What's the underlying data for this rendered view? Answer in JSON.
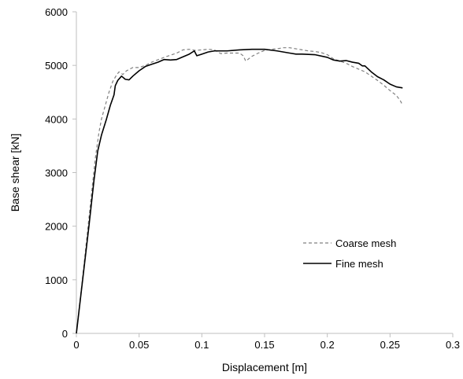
{
  "chart_data": {
    "type": "line",
    "title": "",
    "xlabel": "Displacement [m]",
    "ylabel": "Base shear [kN]",
    "xlim": [
      0,
      0.3
    ],
    "ylim": [
      0,
      6000
    ],
    "x_ticks": [
      0,
      0.05,
      0.1,
      0.15,
      0.2,
      0.25,
      0.3
    ],
    "x_tick_labels": [
      "0",
      "0.05",
      "0.1",
      "0.15",
      "0.2",
      "0.25",
      "0.3"
    ],
    "y_ticks": [
      0,
      1000,
      2000,
      3000,
      4000,
      5000,
      6000
    ],
    "y_tick_labels": [
      "0",
      "1000",
      "2000",
      "3000",
      "4000",
      "5000",
      "6000"
    ],
    "grid": false,
    "legend_position": "center-right",
    "series": [
      {
        "name": "Coarse mesh",
        "style": "dashed",
        "color": "#808080",
        "points": [
          [
            0,
            0
          ],
          [
            0.005,
            1050
          ],
          [
            0.01,
            2150
          ],
          [
            0.015,
            3250
          ],
          [
            0.018,
            3750
          ],
          [
            0.02,
            4000
          ],
          [
            0.023,
            4250
          ],
          [
            0.026,
            4500
          ],
          [
            0.029,
            4700
          ],
          [
            0.032,
            4820
          ],
          [
            0.034,
            4880
          ],
          [
            0.037,
            4830
          ],
          [
            0.04,
            4900
          ],
          [
            0.045,
            4960
          ],
          [
            0.05,
            4960
          ],
          [
            0.055,
            5000
          ],
          [
            0.06,
            5060
          ],
          [
            0.07,
            5150
          ],
          [
            0.08,
            5230
          ],
          [
            0.085,
            5290
          ],
          [
            0.09,
            5300
          ],
          [
            0.095,
            5280
          ],
          [
            0.1,
            5290
          ],
          [
            0.105,
            5300
          ],
          [
            0.11,
            5290
          ],
          [
            0.115,
            5220
          ],
          [
            0.12,
            5230
          ],
          [
            0.125,
            5230
          ],
          [
            0.13,
            5230
          ],
          [
            0.133,
            5180
          ],
          [
            0.135,
            5080
          ],
          [
            0.14,
            5170
          ],
          [
            0.145,
            5230
          ],
          [
            0.15,
            5280
          ],
          [
            0.155,
            5300
          ],
          [
            0.16,
            5310
          ],
          [
            0.165,
            5330
          ],
          [
            0.17,
            5330
          ],
          [
            0.175,
            5310
          ],
          [
            0.18,
            5290
          ],
          [
            0.185,
            5270
          ],
          [
            0.19,
            5260
          ],
          [
            0.195,
            5240
          ],
          [
            0.2,
            5200
          ],
          [
            0.205,
            5120
          ],
          [
            0.21,
            5080
          ],
          [
            0.215,
            5040
          ],
          [
            0.22,
            4980
          ],
          [
            0.225,
            4930
          ],
          [
            0.23,
            4880
          ],
          [
            0.235,
            4800
          ],
          [
            0.24,
            4720
          ],
          [
            0.245,
            4630
          ],
          [
            0.25,
            4530
          ],
          [
            0.255,
            4440
          ],
          [
            0.258,
            4350
          ],
          [
            0.26,
            4260
          ]
        ]
      },
      {
        "name": "Fine mesh",
        "style": "solid",
        "color": "#000000",
        "points": [
          [
            0,
            0
          ],
          [
            0.005,
            1000
          ],
          [
            0.01,
            2000
          ],
          [
            0.014,
            2850
          ],
          [
            0.017,
            3400
          ],
          [
            0.02,
            3700
          ],
          [
            0.024,
            4000
          ],
          [
            0.027,
            4250
          ],
          [
            0.03,
            4450
          ],
          [
            0.031,
            4620
          ],
          [
            0.033,
            4720
          ],
          [
            0.036,
            4800
          ],
          [
            0.039,
            4740
          ],
          [
            0.042,
            4730
          ],
          [
            0.045,
            4800
          ],
          [
            0.05,
            4900
          ],
          [
            0.055,
            4980
          ],
          [
            0.06,
            5020
          ],
          [
            0.065,
            5060
          ],
          [
            0.07,
            5110
          ],
          [
            0.075,
            5100
          ],
          [
            0.08,
            5110
          ],
          [
            0.085,
            5160
          ],
          [
            0.09,
            5210
          ],
          [
            0.094,
            5270
          ],
          [
            0.096,
            5180
          ],
          [
            0.1,
            5210
          ],
          [
            0.105,
            5250
          ],
          [
            0.11,
            5270
          ],
          [
            0.12,
            5270
          ],
          [
            0.13,
            5290
          ],
          [
            0.14,
            5300
          ],
          [
            0.15,
            5300
          ],
          [
            0.16,
            5270
          ],
          [
            0.17,
            5230
          ],
          [
            0.175,
            5210
          ],
          [
            0.18,
            5210
          ],
          [
            0.19,
            5200
          ],
          [
            0.2,
            5150
          ],
          [
            0.205,
            5100
          ],
          [
            0.21,
            5080
          ],
          [
            0.215,
            5090
          ],
          [
            0.22,
            5060
          ],
          [
            0.225,
            5040
          ],
          [
            0.228,
            4990
          ],
          [
            0.23,
            4990
          ],
          [
            0.235,
            4880
          ],
          [
            0.24,
            4790
          ],
          [
            0.245,
            4730
          ],
          [
            0.25,
            4650
          ],
          [
            0.255,
            4600
          ],
          [
            0.26,
            4580
          ]
        ]
      }
    ]
  }
}
